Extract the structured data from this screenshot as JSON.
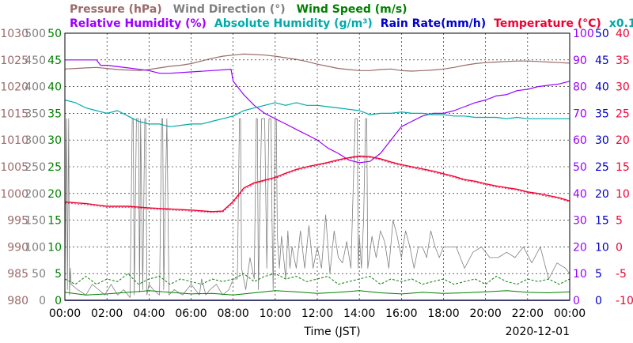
{
  "chart_data": {
    "type": "line",
    "legend": {
      "row1": [
        {
          "key": "pressure",
          "text": "Pressure (hPa)",
          "color": "#9b6b6b"
        },
        {
          "key": "wind_dir",
          "text": "Wind Direction (°)",
          "color": "#808080"
        },
        {
          "key": "wind_speed",
          "text": "Wind Speed (m/s)",
          "color": "#008000"
        }
      ],
      "row2": [
        {
          "key": "humidity",
          "text": "Relative Humidity (%)",
          "color": "#9a00ff"
        },
        {
          "key": "abs_humidity",
          "text": "Absolute Humidity (g/m³)",
          "color": "#00aaaa"
        },
        {
          "key": "rain",
          "text": "Rain Rate(mm/h)",
          "color": "#0000cc"
        },
        {
          "key": "temperature",
          "text": "Temperature (°C)",
          "color": "#ee0033"
        },
        {
          "key": "abs_scale",
          "text": "x0.1",
          "color": "#00aaaa"
        }
      ]
    },
    "xlabel": "Time (JST)",
    "date": "2020-12-01",
    "x_ticks": [
      "00:00",
      "02:00",
      "04:00",
      "06:00",
      "08:00",
      "10:00",
      "12:00",
      "14:00",
      "16:00",
      "18:00",
      "20:00",
      "22:00",
      "00:00"
    ],
    "xlim_hours": [
      0,
      24
    ],
    "grid": true,
    "axes": {
      "pressure": {
        "color": "#9b6b6b",
        "min": 980,
        "max": 1030,
        "ticks": [
          "1030",
          "1025",
          "1020",
          "1015",
          "1010",
          "1005",
          "1000",
          "995",
          "990",
          "985",
          "980"
        ]
      },
      "wind_dir": {
        "color": "#808080",
        "min": 0,
        "max": 500,
        "ticks": [
          "500",
          "450",
          "400",
          "350",
          "300",
          "250",
          "200",
          "150",
          "100",
          "50",
          "0"
        ]
      },
      "wind_speed": {
        "color": "#008000",
        "min": 0,
        "max": 50,
        "ticks": [
          "50",
          "45",
          "40",
          "35",
          "30",
          "25",
          "20",
          "15",
          "10",
          "5",
          "0"
        ]
      },
      "humidity": {
        "color": "#9a00ff",
        "min": 0,
        "max": 100,
        "ticks": [
          "100",
          "90",
          "80",
          "70",
          "60",
          "50",
          "40",
          "30",
          "20",
          "10",
          "0"
        ]
      },
      "rain": {
        "color": "#0000cc",
        "min": 0,
        "max": 50,
        "ticks": [
          "50",
          "45",
          "40",
          "35",
          "30",
          "25",
          "20",
          "15",
          "10",
          "5",
          "0"
        ]
      },
      "temperature": {
        "color": "#ee0033",
        "min": -10,
        "max": 40,
        "ticks": [
          "40",
          "35",
          "30",
          "25",
          "20",
          "15",
          "10",
          "5",
          "0",
          "-5",
          "-10"
        ]
      }
    },
    "series": [
      {
        "key": "pressure",
        "axis": "pressure",
        "color": "#9b6b6b",
        "width": 1.2,
        "x": [
          0,
          0.5,
          1,
          1.5,
          2,
          2.5,
          3,
          3.5,
          4,
          4.5,
          5,
          5.5,
          6,
          6.5,
          7,
          7.5,
          8,
          8.5,
          9,
          9.5,
          10,
          10.5,
          11,
          11.5,
          12,
          12.5,
          13,
          13.5,
          14,
          14.5,
          15,
          15.5,
          16,
          16.5,
          17,
          17.5,
          18,
          18.5,
          19,
          19.5,
          20,
          20.5,
          21,
          21.5,
          22,
          22.5,
          23,
          23.5,
          24
        ],
        "y": [
          1023.3,
          1023.4,
          1023.5,
          1023.6,
          1023.4,
          1023.2,
          1023.1,
          1023.0,
          1023.2,
          1023.5,
          1023.8,
          1024.0,
          1024.3,
          1024.8,
          1025.3,
          1025.7,
          1025.9,
          1026.1,
          1026.0,
          1025.9,
          1025.7,
          1025.4,
          1025.1,
          1024.7,
          1024.2,
          1023.8,
          1023.4,
          1023.2,
          1023.0,
          1023.0,
          1023.2,
          1023.3,
          1023.0,
          1022.9,
          1023.0,
          1023.1,
          1023.3,
          1023.6,
          1024.0,
          1024.3,
          1024.5,
          1024.6,
          1024.7,
          1024.8,
          1024.8,
          1024.7,
          1024.6,
          1024.5,
          1024.4
        ]
      },
      {
        "key": "wind_dir",
        "axis": "wind_dir",
        "color": "#808080",
        "width": 0.8,
        "x": [
          0,
          0.08,
          0.12,
          0.18,
          0.22,
          0.26,
          0.3,
          0.6,
          1.0,
          1.3,
          1.6,
          1.9,
          2.2,
          2.5,
          2.8,
          3.1,
          3.2,
          3.25,
          3.3,
          3.4,
          3.5,
          3.55,
          3.6,
          3.7,
          3.8,
          3.85,
          3.9,
          4.0,
          4.2,
          4.5,
          4.6,
          4.65,
          4.7,
          4.85,
          4.95,
          5.2,
          5.6,
          6.0,
          6.4,
          6.5,
          6.7,
          6.9,
          7.2,
          7.5,
          7.8,
          8.0,
          8.2,
          8.3,
          8.35,
          8.4,
          8.6,
          8.8,
          9.0,
          9.1,
          9.15,
          9.2,
          9.35,
          9.5,
          9.6,
          9.7,
          9.8,
          9.85,
          9.9,
          10.0,
          10.05,
          10.1,
          10.2,
          10.3,
          10.4,
          10.5,
          10.6,
          10.7,
          10.8,
          11.0,
          11.2,
          11.4,
          11.6,
          11.8,
          12.0,
          12.2,
          12.4,
          12.6,
          12.8,
          13.0,
          13.2,
          13.4,
          13.6,
          13.8,
          13.9,
          13.95,
          14.0,
          14.1,
          14.2,
          14.3,
          14.35,
          14.4,
          14.5,
          14.6,
          14.8,
          15.0,
          15.2,
          15.4,
          15.6,
          15.8,
          16.0,
          16.2,
          16.4,
          16.6,
          16.8,
          17.0,
          17.2,
          17.4,
          17.6,
          17.8,
          18.0,
          18.3,
          18.6,
          19.0,
          19.4,
          19.8,
          20.2,
          20.6,
          21.0,
          21.4,
          21.8,
          22.2,
          22.6,
          23.0,
          23.4,
          23.8,
          24.0
        ],
        "y": [
          40,
          340,
          20,
          340,
          10,
          60,
          30,
          20,
          10,
          30,
          20,
          10,
          30,
          10,
          20,
          5,
          340,
          340,
          10,
          340,
          340,
          15,
          340,
          20,
          340,
          340,
          10,
          30,
          20,
          10,
          340,
          340,
          20,
          340,
          10,
          20,
          10,
          30,
          10,
          40,
          10,
          20,
          30,
          10,
          20,
          40,
          40,
          340,
          340,
          60,
          20,
          80,
          40,
          340,
          340,
          20,
          340,
          340,
          60,
          340,
          340,
          150,
          20,
          340,
          340,
          120,
          60,
          120,
          80,
          40,
          130,
          60,
          100,
          60,
          130,
          60,
          140,
          60,
          100,
          60,
          160,
          50,
          130,
          80,
          70,
          110,
          60,
          340,
          340,
          60,
          120,
          60,
          150,
          340,
          340,
          60,
          90,
          120,
          80,
          130,
          110,
          60,
          150,
          120,
          80,
          130,
          100,
          60,
          100,
          100,
          80,
          130,
          100,
          80,
          100,
          100,
          100,
          60,
          90,
          100,
          80,
          80,
          90,
          80,
          100,
          70,
          100,
          40,
          70,
          60,
          50
        ]
      },
      {
        "key": "wind_speed",
        "axis": "wind_speed",
        "color": "#008000",
        "width": 1.0,
        "x": [
          0,
          1,
          2,
          3,
          4,
          5,
          6,
          7,
          8,
          9,
          10,
          11,
          12,
          13,
          14,
          15,
          16,
          17,
          18,
          19,
          20,
          21,
          22,
          23,
          24
        ],
        "y": [
          1.5,
          1.0,
          1.2,
          1.5,
          1.8,
          1.5,
          1.2,
          1.3,
          1.0,
          1.4,
          1.8,
          1.6,
          1.3,
          1.5,
          1.8,
          1.4,
          1.2,
          1.5,
          1.3,
          1.4,
          1.6,
          1.8,
          1.5,
          1.4,
          1.6
        ]
      },
      {
        "key": "wind_gust",
        "axis": "wind_speed",
        "color": "#008000",
        "width": 1.0,
        "dash": "3,2",
        "x": [
          0,
          0.5,
          1,
          1.5,
          2,
          2.5,
          3,
          3.5,
          4,
          4.5,
          5,
          5.5,
          6,
          6.5,
          7,
          7.5,
          8,
          8.5,
          9,
          9.5,
          10,
          10.5,
          11,
          11.5,
          12,
          12.5,
          13,
          13.5,
          14,
          14.5,
          15,
          15.5,
          16,
          16.5,
          17,
          17.5,
          18,
          18.5,
          19,
          19.5,
          20,
          20.5,
          21,
          21.5,
          22,
          22.5,
          23,
          23.5,
          24
        ],
        "y": [
          4,
          3,
          4.5,
          3,
          4,
          3.5,
          5,
          3,
          4,
          4.5,
          3,
          4,
          3.5,
          3,
          4,
          3.5,
          4,
          5,
          3.5,
          4.5,
          5,
          4,
          4.5,
          3.5,
          4,
          4.5,
          3,
          3.5,
          4,
          4.5,
          3,
          4,
          3.5,
          4,
          3,
          3.5,
          4,
          3,
          3.5,
          4,
          3,
          4.5,
          3.5,
          3,
          4,
          3.5,
          4,
          3,
          4
        ]
      },
      {
        "key": "humidity",
        "axis": "humidity",
        "color": "#9a00ff",
        "width": 1.2,
        "x": [
          0,
          1.5,
          1.7,
          2,
          3,
          4,
          4.5,
          5,
          6,
          7,
          7.9,
          8,
          8.5,
          9,
          9.5,
          10,
          10.5,
          11,
          11.5,
          12,
          12.5,
          13,
          13.5,
          14,
          14.5,
          15,
          15.5,
          16,
          16.5,
          17,
          17.5,
          18,
          18.5,
          19,
          19.5,
          20,
          20.5,
          21,
          21.5,
          22,
          22.5,
          23,
          23.5,
          24
        ],
        "y": [
          90,
          90,
          88,
          88,
          87,
          86,
          85,
          85,
          85.5,
          86,
          86.5,
          82,
          77,
          73,
          70,
          68,
          66,
          64,
          62,
          60,
          57,
          55,
          52.5,
          51.5,
          52,
          55,
          60,
          65,
          67,
          69,
          70,
          70,
          71,
          72.5,
          74,
          75,
          76.5,
          77,
          78.5,
          79,
          80,
          80.5,
          81,
          82
        ]
      },
      {
        "key": "abs_humidity",
        "axis": "humidity",
        "color": "#00aaaa",
        "width": 1.2,
        "x": [
          0,
          0.5,
          1,
          1.5,
          2,
          2.5,
          3,
          3.5,
          4,
          4.5,
          5,
          5.5,
          6,
          6.5,
          7,
          7.5,
          8,
          8.5,
          9,
          9.5,
          10,
          10.5,
          11,
          11.5,
          12,
          12.5,
          13,
          13.5,
          14,
          14.5,
          15,
          15.5,
          16,
          16.5,
          17,
          17.5,
          18,
          18.5,
          19,
          19.5,
          20,
          20.5,
          21,
          21.5,
          22,
          22.5,
          23,
          23.5,
          24
        ],
        "y": [
          75,
          74,
          72,
          71,
          70,
          71,
          69,
          67,
          66,
          66,
          65,
          65.5,
          66,
          66,
          67,
          68,
          69,
          71,
          72,
          73,
          74,
          73,
          74,
          73,
          73,
          72.5,
          72,
          71.5,
          71,
          69.5,
          70,
          70,
          70.5,
          70,
          70,
          69.5,
          69.5,
          69,
          69,
          68.5,
          68.5,
          68.5,
          68,
          68.5,
          68,
          68,
          68,
          68,
          68
        ]
      },
      {
        "key": "temperature",
        "axis": "temperature",
        "color": "#ee0033",
        "width": 1.4,
        "x": [
          0,
          1,
          2,
          3,
          4,
          5,
          6,
          7,
          7.5,
          8,
          8.5,
          9,
          9.5,
          10,
          10.5,
          11,
          11.5,
          12,
          12.5,
          13,
          13.5,
          14,
          14.5,
          15,
          15.5,
          16,
          16.5,
          17,
          17.5,
          18,
          18.5,
          19,
          19.5,
          20,
          20.5,
          21,
          21.5,
          22,
          22.5,
          23,
          23.5,
          24
        ],
        "y": [
          8.4,
          8.1,
          7.6,
          7.6,
          7.3,
          7.1,
          6.9,
          6.6,
          6.7,
          8.5,
          11.0,
          12.0,
          12.5,
          13.0,
          13.8,
          14.5,
          15.0,
          15.4,
          15.8,
          16.3,
          16.7,
          17.0,
          16.9,
          16.5,
          15.9,
          15.4,
          15.0,
          14.6,
          14.2,
          13.7,
          13.2,
          12.6,
          12.3,
          11.8,
          11.4,
          11.1,
          10.8,
          10.3,
          10.0,
          9.6,
          9.2,
          8.6
        ]
      },
      {
        "key": "dewpoint",
        "axis": "temperature",
        "color": "#ee0033",
        "width": 0.7,
        "dash": "2,2",
        "x": [
          0,
          1,
          2,
          3,
          4,
          5,
          6,
          7,
          7.5,
          8,
          8.5,
          9,
          9.5,
          10,
          10.5,
          11,
          11.5,
          12,
          12.5,
          13,
          13.5,
          14,
          14.5,
          15,
          15.5,
          16,
          16.5,
          17,
          17.5,
          18,
          18.5,
          19,
          19.5,
          20,
          20.5,
          21,
          21.5,
          22,
          22.5,
          23,
          23.5,
          24
        ],
        "y": [
          8.2,
          7.9,
          7.4,
          7.4,
          7.1,
          6.9,
          6.7,
          6.4,
          6.5,
          8.2,
          10.7,
          11.8,
          12.3,
          12.8,
          13.6,
          14.3,
          14.8,
          15.2,
          15.6,
          16.1,
          16.5,
          16.8,
          16.7,
          16.3,
          15.7,
          15.2,
          14.8,
          14.4,
          14.0,
          13.5,
          13.0,
          12.4,
          12.1,
          11.6,
          11.2,
          10.9,
          10.6,
          10.1,
          9.8,
          9.4,
          9.0,
          8.4
        ]
      },
      {
        "key": "rain",
        "axis": "rain",
        "color": "#0000cc",
        "width": 1.4,
        "x": [
          0,
          24
        ],
        "y": [
          0,
          0
        ]
      }
    ]
  }
}
